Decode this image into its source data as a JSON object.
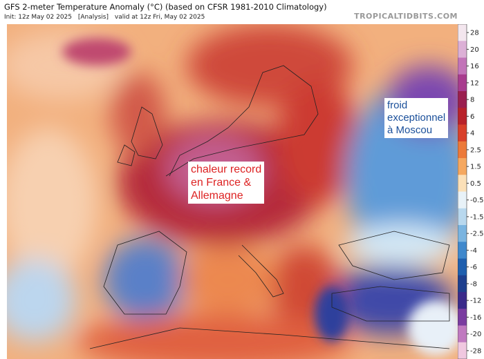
{
  "header": {
    "title": "GFS 2-meter Temperature Anomaly (°C) (based on CFSR 1981-2010 Climatology)",
    "init": "Init: 12z May 02 2025",
    "run_type": "[Analysis]",
    "valid": "valid at 12z Fri, May 02 2025",
    "site": "TROPICALTIDBITS.COM"
  },
  "colorbar": {
    "ticks": [
      28,
      20,
      16,
      12,
      8,
      6,
      4,
      2.5,
      1.5,
      0.5,
      -0.5,
      -1.5,
      -2.5,
      -4,
      -6,
      -8,
      -12,
      -16,
      -20,
      -28
    ],
    "colors": [
      "#f3e6ee",
      "#dcb0d6",
      "#c274b8",
      "#a83c8e",
      "#9a1f4f",
      "#b8222a",
      "#d8402a",
      "#ec7a3a",
      "#f5a860",
      "#fbe0b8",
      "#e8f2f8",
      "#b8d8ee",
      "#7ab4e0",
      "#3f88cc",
      "#1f5fae",
      "#1e3f8e",
      "#3a2a8a",
      "#7a3ca0",
      "#c07ac0",
      "#f0c8e0"
    ]
  },
  "annotations": [
    {
      "lines": [
        "chaleur record",
        "en France &",
        "Allemagne"
      ]
    },
    {
      "lines": [
        "froid",
        "exceptionnel",
        "à Moscou"
      ]
    }
  ]
}
